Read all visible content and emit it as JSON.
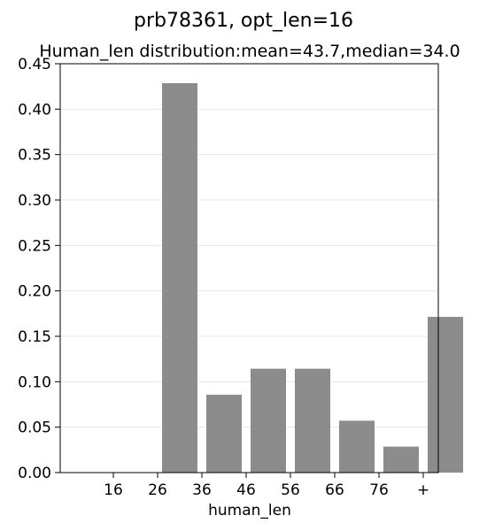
{
  "chart_data": {
    "type": "bar",
    "suptitle": "prb78361, opt_len=16",
    "title": "Human_len distribution:mean=43.7,median=34.0",
    "xlabel": "human_len",
    "ylabel": "",
    "ylim": [
      0,
      0.45
    ],
    "yticks": [
      "0.00",
      "0.05",
      "0.10",
      "0.15",
      "0.20",
      "0.25",
      "0.30",
      "0.35",
      "0.40",
      "0.45"
    ],
    "categories": [
      "16",
      "26",
      "36",
      "46",
      "56",
      "66",
      "76",
      "+"
    ],
    "values": [
      0.0,
      0.4286,
      0.0857,
      0.1143,
      0.1143,
      0.0571,
      0.0286,
      0.1714
    ],
    "bar_color": "#8c8c8c",
    "grid": true,
    "legend": "none"
  }
}
